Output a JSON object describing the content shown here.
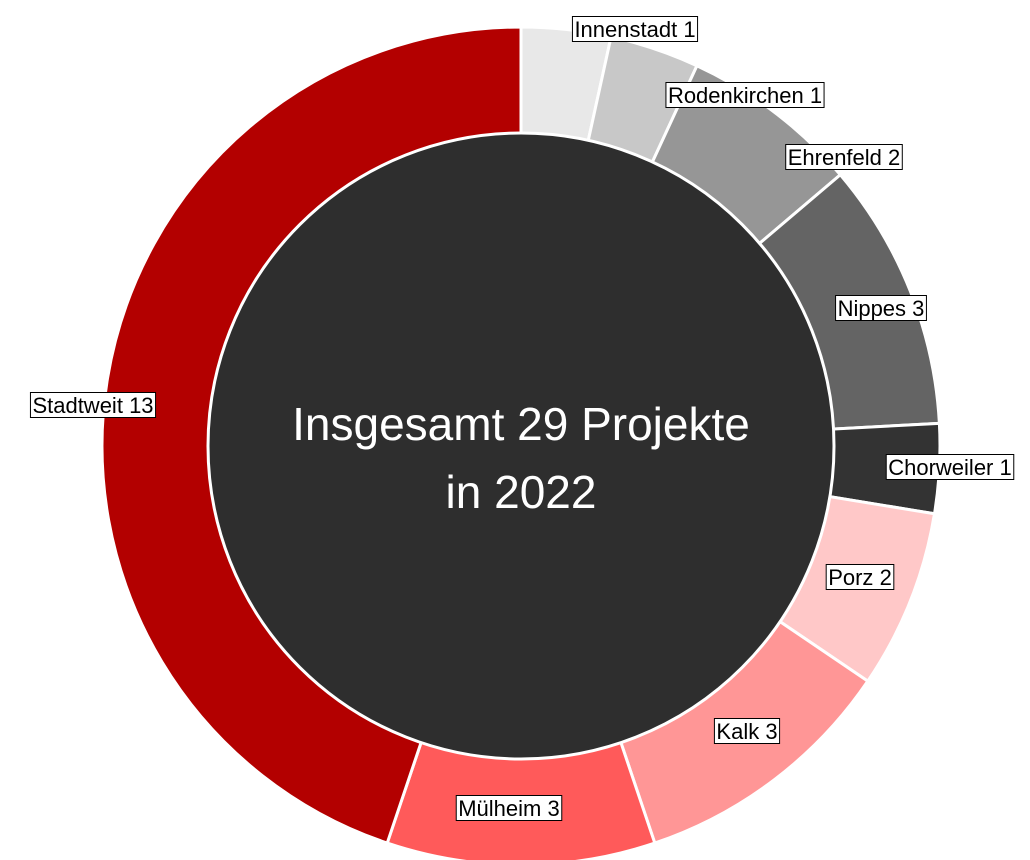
{
  "chart_data": {
    "type": "donut",
    "annotations": [
      "Insgesamt 29 Projekte",
      "in 2022"
    ],
    "categories": [
      "Innenstadt",
      "Rodenkirchen",
      "Ehrenfeld",
      "Nippes",
      "Chorweiler",
      "Porz",
      "Kalk",
      "Mülheim",
      "Stadtweit"
    ],
    "values": [
      1,
      1,
      2,
      3,
      1,
      2,
      3,
      3,
      13
    ],
    "colors": [
      "#e8e8e8",
      "#c8c8c8",
      "#969696",
      "#646464",
      "#333333",
      "#ffc8c8",
      "#ff9696",
      "#ff5a5a",
      "#b30000"
    ]
  }
}
